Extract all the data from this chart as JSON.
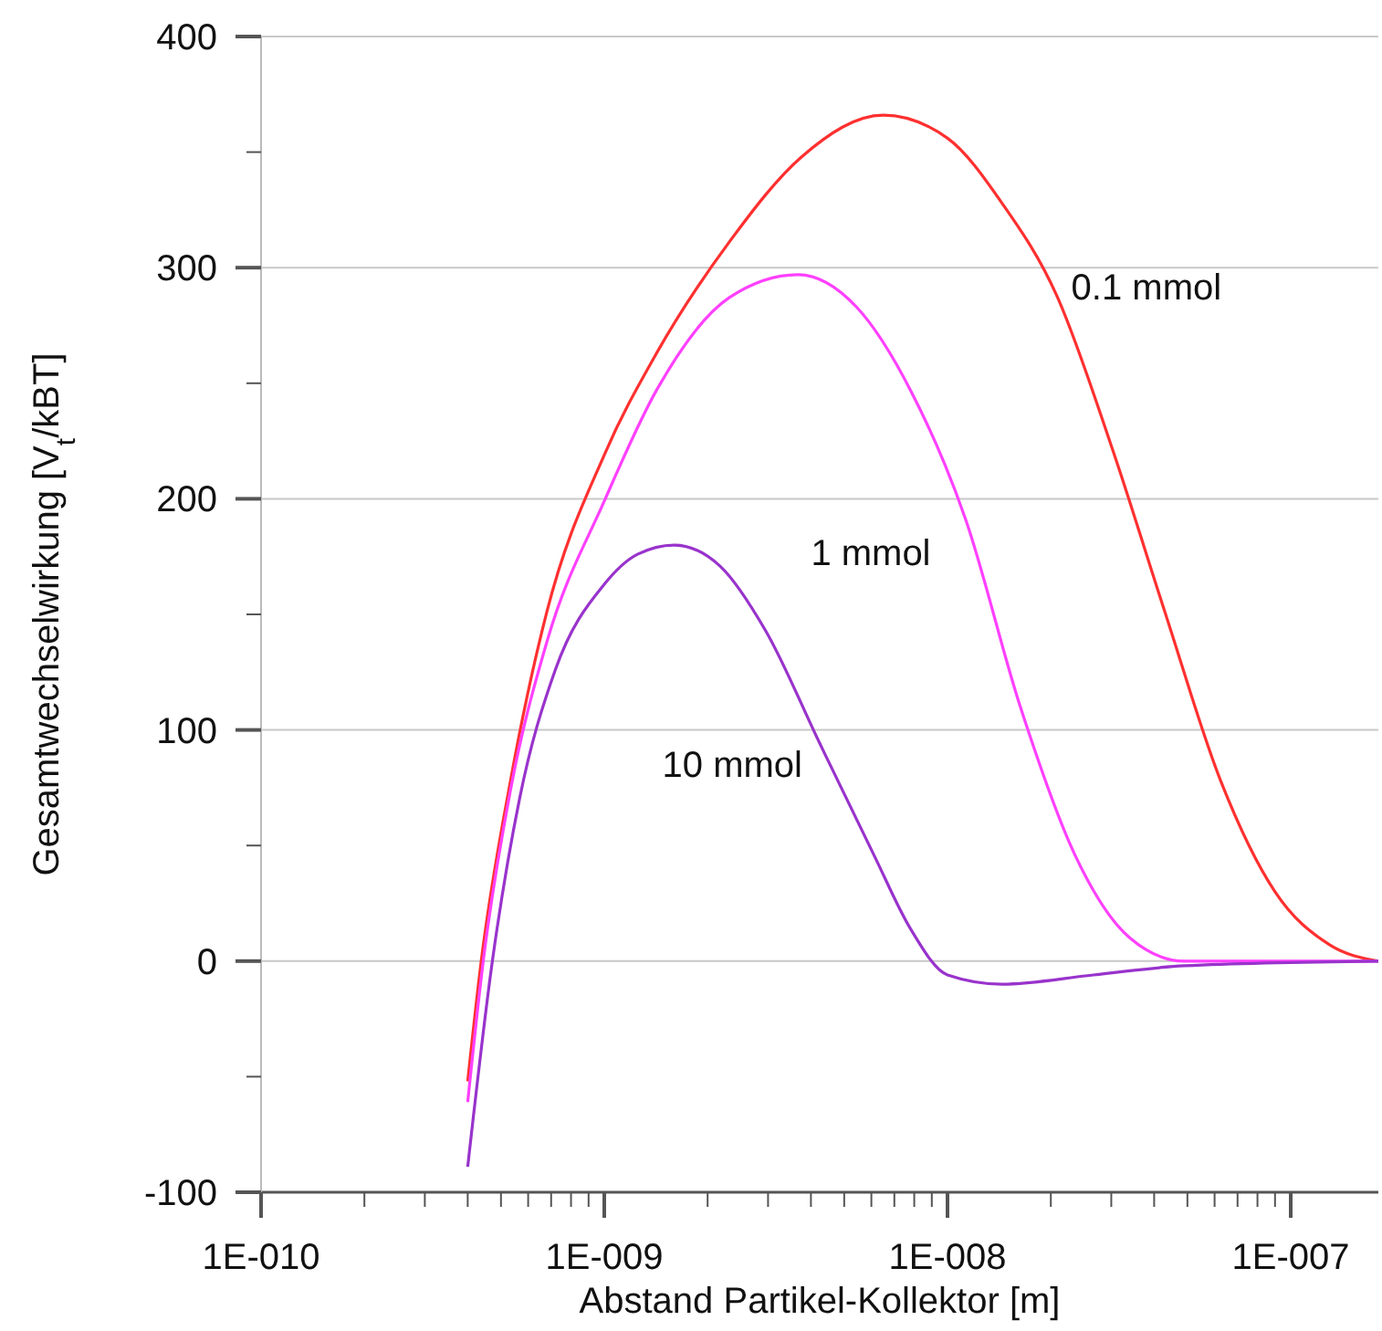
{
  "chart_data": {
    "type": "line",
    "xlabel": "Abstand Partikel-Kollektor [m]",
    "ylabel": "Gesamtwechselwirkung [V$_{t}$/kBT]",
    "log": "x",
    "grid": "y",
    "legend": false,
    "marker": "none",
    "line_style": "solid",
    "xlim": [
      1e-10,
      1.8e-07
    ],
    "ylim": [
      -100,
      400
    ],
    "xticks": [
      {
        "value": 1e-10,
        "label": "1E-010"
      },
      {
        "value": 2e-10,
        "label": null
      },
      {
        "value": 3e-10,
        "label": null
      },
      {
        "value": 4e-10,
        "label": null
      },
      {
        "value": 5e-10,
        "label": null
      },
      {
        "value": 6e-10,
        "label": null
      },
      {
        "value": 7e-10,
        "label": null
      },
      {
        "value": 8e-10,
        "label": null
      },
      {
        "value": 9e-10,
        "label": null
      },
      {
        "value": 1e-09,
        "label": "1E-009"
      },
      {
        "value": 2e-09,
        "label": null
      },
      {
        "value": 3e-09,
        "label": null
      },
      {
        "value": 4e-09,
        "label": null
      },
      {
        "value": 5e-09,
        "label": null
      },
      {
        "value": 6e-09,
        "label": null
      },
      {
        "value": 7e-09,
        "label": null
      },
      {
        "value": 8e-09,
        "label": null
      },
      {
        "value": 9e-09,
        "label": null
      },
      {
        "value": 1e-08,
        "label": "1E-008"
      },
      {
        "value": 2e-08,
        "label": null
      },
      {
        "value": 3e-08,
        "label": null
      },
      {
        "value": 4e-08,
        "label": null
      },
      {
        "value": 5e-08,
        "label": null
      },
      {
        "value": 6e-08,
        "label": null
      },
      {
        "value": 7e-08,
        "label": null
      },
      {
        "value": 8e-08,
        "label": null
      },
      {
        "value": 9e-08,
        "label": null
      },
      {
        "value": 1e-07,
        "label": "1E-007"
      }
    ],
    "yticks": [
      -100,
      {
        "value": -50,
        "label": null
      },
      0,
      {
        "value": 50,
        "label": null
      },
      100,
      {
        "value": 150,
        "label": null
      },
      200,
      {
        "value": 250,
        "label": null
      },
      300,
      {
        "value": 350,
        "label": null
      },
      400
    ],
    "series": [
      {
        "name": "0.1 mmol",
        "color": "#ff3030",
        "x": [
          4e-10,
          4.38e-10,
          5.33e-10,
          6.8e-10,
          1e-09,
          1.42e-09,
          2.31e-09,
          3.76e-09,
          6.5e-09,
          1e-08,
          1.44e-08,
          2.08e-08,
          3e-08,
          4.3e-08,
          6.25e-08,
          9e-08,
          1.3e-07,
          1.8e-07
        ],
        "values": [
          -52,
          0,
          78,
          151,
          219,
          263,
          311,
          348,
          366,
          356,
          328,
          288,
          223,
          151,
          78,
          30,
          7,
          0
        ]
      },
      {
        "name": "1 mmol",
        "color": "#ff40ff",
        "x": [
          4e-10,
          4.44e-10,
          5.33e-10,
          6.8e-10,
          1e-09,
          1.42e-09,
          2.31e-09,
          3.67e-09,
          5.43e-09,
          7.8e-09,
          1.13e-08,
          1.63e-08,
          2.35e-08,
          3.4e-08,
          4.9e-08,
          1.8e-07
        ],
        "values": [
          -61,
          0,
          74,
          138,
          199,
          247,
          287,
          297,
          283,
          247,
          191,
          110,
          46,
          10,
          0,
          0
        ]
      },
      {
        "name": "10 mmol",
        "color": "#9933cc",
        "x": [
          4e-10,
          4.72e-10,
          5.66e-10,
          7.2e-10,
          1e-09,
          1.25e-09,
          1.6e-09,
          2.17e-09,
          2.95e-09,
          4.25e-09,
          6.1e-09,
          7.8e-09,
          1e-08,
          1.44e-08,
          2.66e-08,
          4.9e-08,
          1.8e-07
        ],
        "values": [
          -89,
          0,
          70,
          126,
          163,
          176,
          180,
          171,
          143,
          94,
          46,
          14,
          -6,
          -10,
          -6,
          -2,
          0
        ]
      }
    ]
  }
}
